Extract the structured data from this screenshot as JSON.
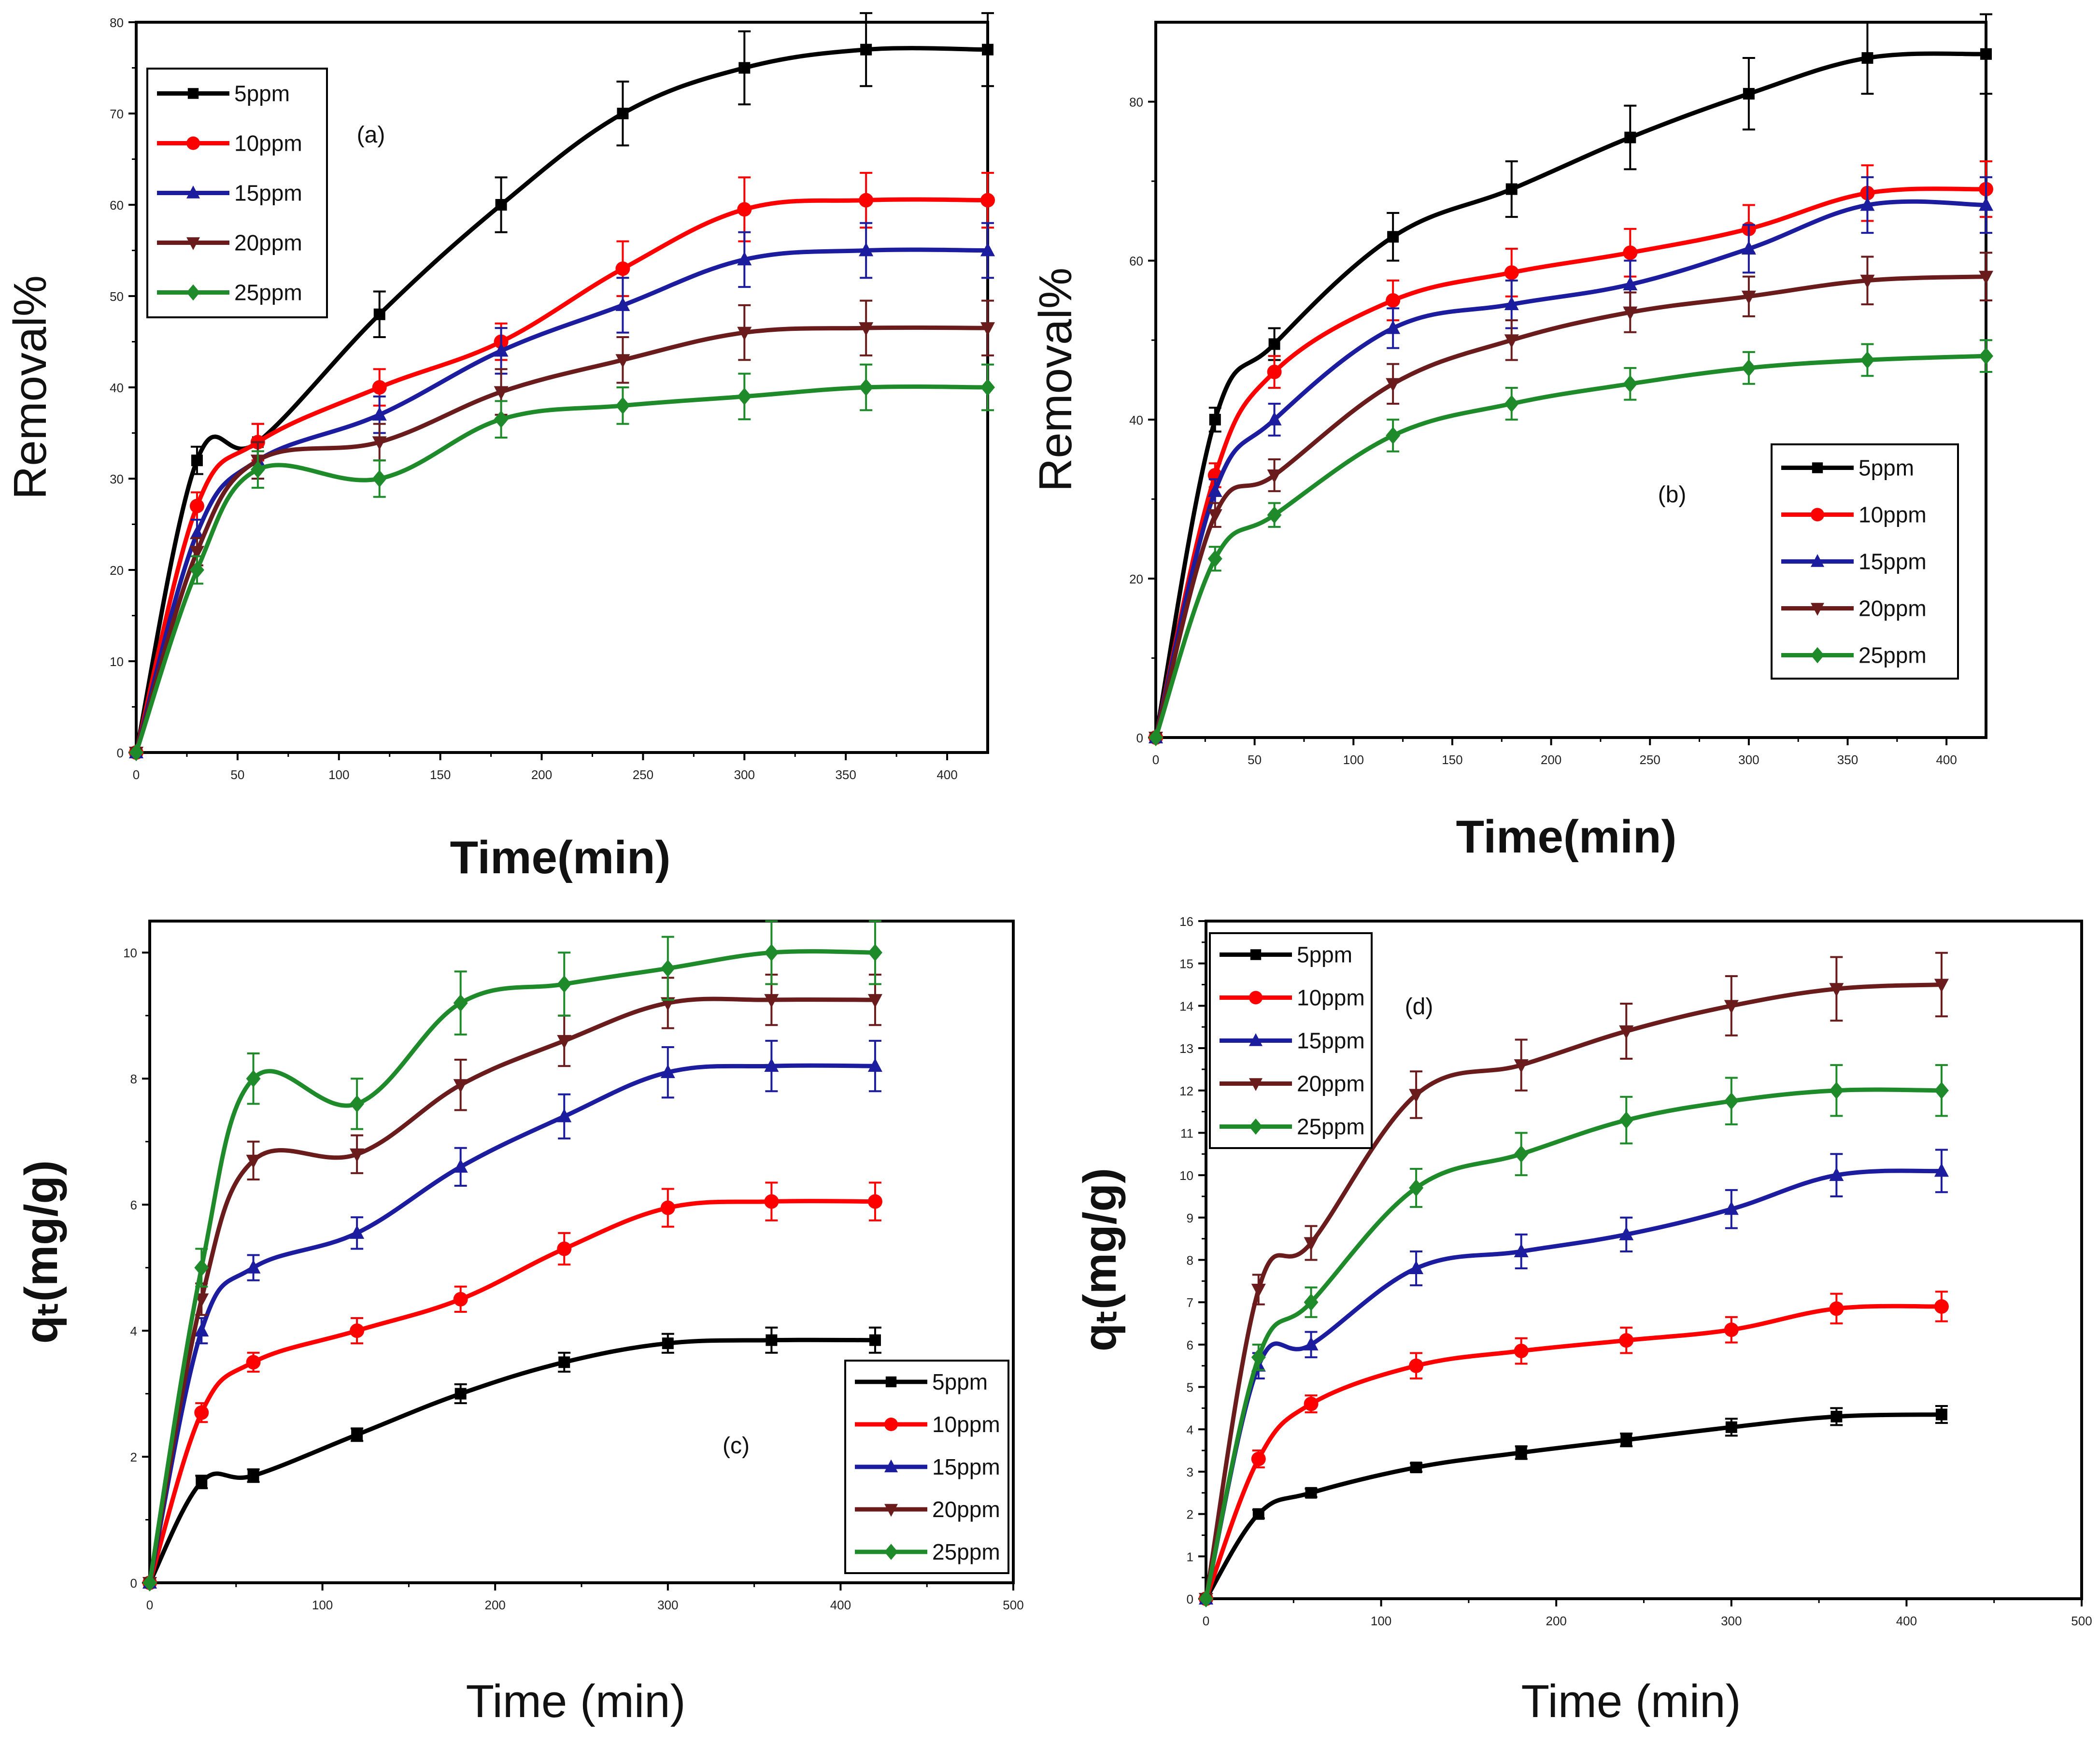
{
  "colors": {
    "5ppm": "#000000",
    "10ppm": "#ff0000",
    "15ppm": "#1c1c9e",
    "20ppm": "#6a1c1c",
    "25ppm": "#1e8a2a"
  },
  "chart_data": [
    {
      "type": "line",
      "panel": "(a)",
      "xlabel": "Time(min)",
      "ylabel": "Removal%",
      "xlim": [
        0,
        420
      ],
      "ylim": [
        0,
        80
      ],
      "xticks": [
        0,
        50,
        100,
        150,
        200,
        250,
        300,
        350,
        400
      ],
      "yticks": [
        0,
        10,
        20,
        30,
        40,
        50,
        60,
        70,
        80
      ],
      "x": [
        0,
        30,
        60,
        120,
        180,
        240,
        300,
        360,
        420
      ],
      "series": [
        {
          "name": "5ppm",
          "marker": "square",
          "values": [
            0,
            32,
            34,
            48,
            60,
            70,
            75,
            77,
            77
          ],
          "err": [
            0,
            1.5,
            2,
            2.5,
            3,
            3.5,
            4,
            4,
            4
          ]
        },
        {
          "name": "10ppm",
          "marker": "circle",
          "values": [
            0,
            27,
            34,
            40,
            45,
            53,
            59.5,
            60.5,
            60.5
          ],
          "err": [
            0,
            1.5,
            2,
            2,
            2,
            3,
            3.5,
            3,
            3
          ]
        },
        {
          "name": "15ppm",
          "marker": "triangle-up",
          "values": [
            0,
            24,
            32,
            37,
            44,
            49,
            54,
            55,
            55
          ],
          "err": [
            0,
            1.5,
            2,
            2,
            2.5,
            3,
            3,
            3,
            3
          ]
        },
        {
          "name": "20ppm",
          "marker": "triangle-down",
          "values": [
            0,
            22,
            32,
            34,
            39.5,
            43,
            46,
            46.5,
            46.5
          ],
          "err": [
            0,
            1.5,
            2,
            2,
            2.5,
            2.5,
            3,
            3,
            3
          ]
        },
        {
          "name": "25ppm",
          "marker": "diamond",
          "values": [
            0,
            20,
            31,
            30,
            36.5,
            38,
            39,
            40,
            40
          ],
          "err": [
            0,
            1.5,
            2,
            2,
            2,
            2,
            2.5,
            2.5,
            2.5
          ]
        }
      ],
      "legend_position": "top-left"
    },
    {
      "type": "line",
      "panel": "(b)",
      "xlabel": "Time(min)",
      "ylabel": "Removal%",
      "xlim": [
        0,
        420
      ],
      "ylim": [
        0,
        90
      ],
      "xticks": [
        0,
        50,
        100,
        150,
        200,
        250,
        300,
        350,
        400
      ],
      "yticks": [
        0,
        20,
        40,
        60,
        80
      ],
      "x": [
        0,
        30,
        60,
        120,
        180,
        240,
        300,
        360,
        420
      ],
      "series": [
        {
          "name": "5ppm",
          "marker": "square",
          "values": [
            0,
            40,
            49.5,
            63,
            69,
            75.5,
            81,
            85.5,
            86
          ],
          "err": [
            0,
            1.5,
            2,
            3,
            3.5,
            4,
            4.5,
            4.5,
            5
          ]
        },
        {
          "name": "10ppm",
          "marker": "circle",
          "values": [
            0,
            33,
            46,
            55,
            58.5,
            61,
            64,
            68.5,
            69
          ],
          "err": [
            0,
            1.5,
            2,
            2.5,
            3,
            3,
            3,
            3.5,
            3.5
          ]
        },
        {
          "name": "15ppm",
          "marker": "triangle-up",
          "values": [
            0,
            31,
            40,
            51.5,
            54.5,
            57,
            61.5,
            67,
            67
          ],
          "err": [
            0,
            1.5,
            2,
            2.5,
            3,
            3,
            3,
            3.5,
            3.5
          ]
        },
        {
          "name": "20ppm",
          "marker": "triangle-down",
          "values": [
            0,
            28,
            33,
            44.5,
            50,
            53.5,
            55.5,
            57.5,
            58
          ],
          "err": [
            0,
            1.5,
            2,
            2.5,
            2.5,
            2.5,
            2.5,
            3,
            3
          ]
        },
        {
          "name": "25ppm",
          "marker": "diamond",
          "values": [
            0,
            22.5,
            28,
            38,
            42,
            44.5,
            46.5,
            47.5,
            48
          ],
          "err": [
            0,
            1.5,
            1.5,
            2,
            2,
            2,
            2,
            2,
            2
          ]
        }
      ],
      "legend_position": "bottom-right"
    },
    {
      "type": "line",
      "panel": "(c)",
      "xlabel": "Time (min)",
      "ylabel": "qₜ(mg/g)",
      "xlim": [
        0,
        500
      ],
      "ylim": [
        0,
        10.5
      ],
      "xticks": [
        0,
        100,
        200,
        300,
        400,
        500
      ],
      "yticks": [
        0,
        2,
        4,
        6,
        8,
        10
      ],
      "x": [
        0,
        30,
        60,
        120,
        180,
        240,
        300,
        360,
        420
      ],
      "series": [
        {
          "name": "5ppm",
          "marker": "square",
          "values": [
            0,
            1.6,
            1.7,
            2.35,
            3.0,
            3.5,
            3.8,
            3.85,
            3.85
          ],
          "err": [
            0,
            0.1,
            0.1,
            0.1,
            0.15,
            0.15,
            0.15,
            0.2,
            0.2
          ]
        },
        {
          "name": "10ppm",
          "marker": "circle",
          "values": [
            0,
            2.7,
            3.5,
            4.0,
            4.5,
            5.3,
            5.95,
            6.05,
            6.05
          ],
          "err": [
            0,
            0.15,
            0.15,
            0.2,
            0.2,
            0.25,
            0.3,
            0.3,
            0.3
          ]
        },
        {
          "name": "15ppm",
          "marker": "triangle-up",
          "values": [
            0,
            4.0,
            5.0,
            5.55,
            6.6,
            7.4,
            8.1,
            8.2,
            8.2
          ],
          "err": [
            0,
            0.2,
            0.2,
            0.25,
            0.3,
            0.35,
            0.4,
            0.4,
            0.4
          ]
        },
        {
          "name": "20ppm",
          "marker": "triangle-down",
          "values": [
            0,
            4.5,
            6.7,
            6.8,
            7.9,
            8.6,
            9.2,
            9.25,
            9.25
          ],
          "err": [
            0,
            0.25,
            0.3,
            0.3,
            0.4,
            0.4,
            0.4,
            0.4,
            0.4
          ]
        },
        {
          "name": "25ppm",
          "marker": "diamond",
          "values": [
            0,
            5.0,
            8.0,
            7.6,
            9.2,
            9.5,
            9.75,
            10.0,
            10.0
          ],
          "err": [
            0,
            0.3,
            0.4,
            0.4,
            0.5,
            0.5,
            0.5,
            0.5,
            0.5
          ]
        }
      ],
      "legend_position": "bottom-right"
    },
    {
      "type": "line",
      "panel": "(d)",
      "xlabel": "Time (min)",
      "ylabel": "qₜ(mg/g)",
      "xlim": [
        0,
        500
      ],
      "ylim": [
        0,
        16
      ],
      "xticks": [
        0,
        100,
        200,
        300,
        400,
        500
      ],
      "yticks": [
        0,
        1,
        2,
        3,
        4,
        5,
        6,
        7,
        8,
        9,
        10,
        11,
        12,
        13,
        14,
        15,
        16
      ],
      "x": [
        0,
        30,
        60,
        120,
        180,
        240,
        300,
        360,
        420
      ],
      "series": [
        {
          "name": "5ppm",
          "marker": "square",
          "values": [
            0,
            2.0,
            2.5,
            3.1,
            3.45,
            3.75,
            4.05,
            4.3,
            4.35
          ],
          "err": [
            0,
            0.1,
            0.1,
            0.1,
            0.15,
            0.15,
            0.2,
            0.2,
            0.2
          ]
        },
        {
          "name": "10ppm",
          "marker": "circle",
          "values": [
            0,
            3.3,
            4.6,
            5.5,
            5.85,
            6.1,
            6.35,
            6.85,
            6.9
          ],
          "err": [
            0,
            0.2,
            0.2,
            0.3,
            0.3,
            0.3,
            0.3,
            0.35,
            0.35
          ]
        },
        {
          "name": "15ppm",
          "marker": "triangle-up",
          "values": [
            0,
            5.5,
            6.0,
            7.8,
            8.2,
            8.6,
            9.2,
            10.0,
            10.1
          ],
          "err": [
            0,
            0.3,
            0.3,
            0.4,
            0.4,
            0.4,
            0.45,
            0.5,
            0.5
          ]
        },
        {
          "name": "20ppm",
          "marker": "triangle-down",
          "values": [
            0,
            7.3,
            8.4,
            11.9,
            12.6,
            13.4,
            14.0,
            14.4,
            14.5
          ],
          "err": [
            0,
            0.35,
            0.4,
            0.55,
            0.6,
            0.65,
            0.7,
            0.75,
            0.75
          ]
        },
        {
          "name": "25ppm",
          "marker": "diamond",
          "values": [
            0,
            5.7,
            7.0,
            9.7,
            10.5,
            11.3,
            11.75,
            12.0,
            12.0
          ],
          "err": [
            0,
            0.3,
            0.35,
            0.45,
            0.5,
            0.55,
            0.55,
            0.6,
            0.6
          ]
        }
      ],
      "legend_position": "top-left"
    }
  ]
}
